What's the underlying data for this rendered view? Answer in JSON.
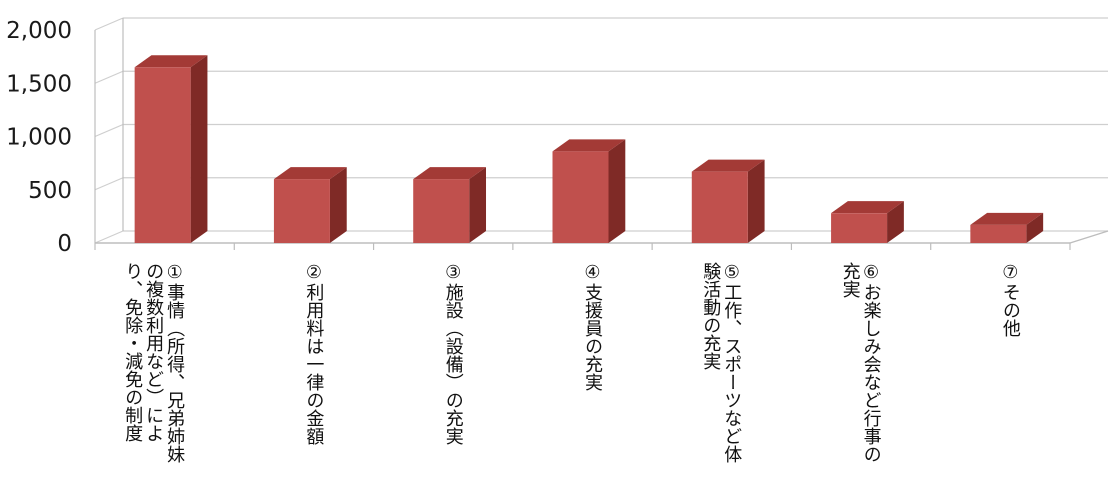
{
  "chart_data": {
    "type": "bar",
    "title": "",
    "xlabel": "",
    "ylabel": "",
    "ylim": [
      0,
      2000
    ],
    "yticks": [
      0,
      500,
      1000,
      1500,
      2000
    ],
    "ytick_labels": [
      "0",
      "500",
      "1,000",
      "1,500",
      "2,000"
    ],
    "grid": true,
    "legend": "none",
    "style": "3d-column",
    "categories": [
      [
        "①事情（所得、兄弟姉妹",
        "の複数利用など）によ",
        "り、免除・減免の制度"
      ],
      [
        "②利用料は一律の金額"
      ],
      [
        "③施設（設備）の充実"
      ],
      [
        "④支援員の充実"
      ],
      [
        "⑤工作、スポーツなど体",
        "験活動の充実"
      ],
      [
        "⑥お楽しみ会など行事の",
        "充実"
      ],
      [
        "⑦その他"
      ]
    ],
    "values": [
      1650,
      600,
      600,
      860,
      670,
      280,
      170
    ],
    "colors": {
      "bar_front": "#c0504d",
      "bar_side": "#7f2a26",
      "bar_top": "#a33a36",
      "grid": "#cfcfcf",
      "axis": "#bdbdbd",
      "text": "#111111"
    }
  }
}
